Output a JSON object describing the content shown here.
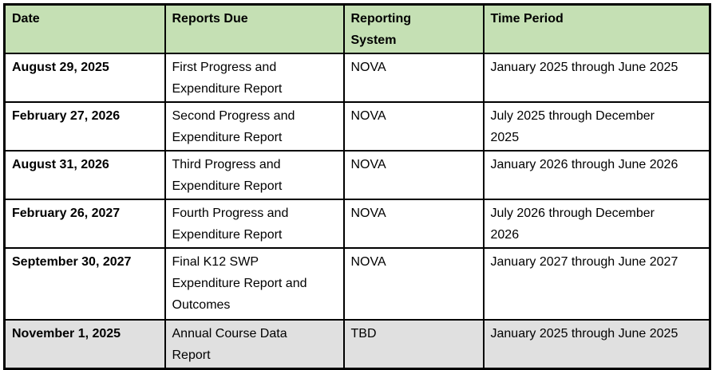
{
  "table": {
    "columns": [
      {
        "label": "Date"
      },
      {
        "label": "Reports Due"
      },
      {
        "label": "Reporting\nSystem"
      },
      {
        "label": "Time Period"
      }
    ],
    "rows": [
      {
        "date": "August 29, 2025",
        "report": "First Progress and\nExpenditure Report",
        "system": "NOVA",
        "period": "January 2025 through June 2025"
      },
      {
        "date": "February 27, 2026",
        "report": "Second Progress and\nExpenditure Report",
        "system": "NOVA",
        "period": "July 2025 through December\n2025"
      },
      {
        "date": "August 31, 2026",
        "report": "Third Progress and\nExpenditure Report",
        "system": "NOVA",
        "period": "January 2026 through June 2026"
      },
      {
        "date": "February 26, 2027",
        "report": "Fourth Progress and\nExpenditure Report",
        "system": "NOVA",
        "period": "July 2026 through December\n2026"
      },
      {
        "date": "September 30, 2027",
        "report": "Final K12 SWP\nExpenditure Report and\nOutcomes",
        "system": "NOVA",
        "period": "January 2027 through June 2027"
      },
      {
        "date": "November 1, 2025",
        "report": "Annual Course Data\nReport",
        "system": "TBD",
        "period": "January 2025 through June 2025"
      }
    ]
  },
  "colors": {
    "header_bg": "#c5e0b4",
    "shaded_row_bg": "#e0e0e0",
    "border": "#000000",
    "text": "#000000"
  }
}
